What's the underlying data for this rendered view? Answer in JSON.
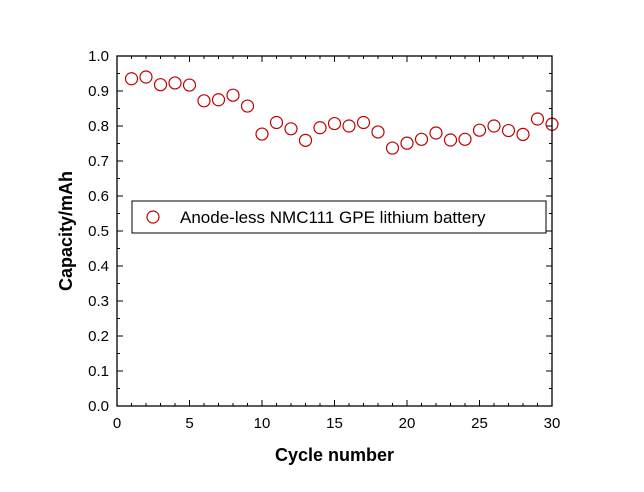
{
  "chart_data": {
    "type": "scatter",
    "xlabel": "Cycle number",
    "ylabel": "Capacity/mAh",
    "xlim": [
      0,
      30
    ],
    "ylim": [
      0.0,
      1.0
    ],
    "x_ticks": [
      "0",
      "5",
      "10",
      "15",
      "20",
      "25",
      "30"
    ],
    "y_ticks": [
      "0.0",
      "0.1",
      "0.2",
      "0.3",
      "0.4",
      "0.5",
      "0.6",
      "0.7",
      "0.8",
      "0.9",
      "1.0"
    ],
    "grid": false,
    "legend_position": "center-left",
    "marker": "open-circle",
    "series": [
      {
        "name": "Anode-less NMC111 GPE lithium battery",
        "color": "#c00000",
        "x": [
          1,
          2,
          3,
          4,
          5,
          6,
          7,
          8,
          9,
          10,
          11,
          12,
          13,
          14,
          15,
          16,
          17,
          18,
          19,
          20,
          21,
          22,
          23,
          24,
          25,
          26,
          27,
          28,
          29,
          30
        ],
        "y": [
          0.935,
          0.94,
          0.918,
          0.923,
          0.917,
          0.872,
          0.875,
          0.888,
          0.857,
          0.777,
          0.81,
          0.792,
          0.759,
          0.795,
          0.807,
          0.8,
          0.81,
          0.783,
          0.737,
          0.751,
          0.762,
          0.78,
          0.76,
          0.762,
          0.788,
          0.8,
          0.787,
          0.776,
          0.82,
          0.805
        ]
      }
    ]
  }
}
